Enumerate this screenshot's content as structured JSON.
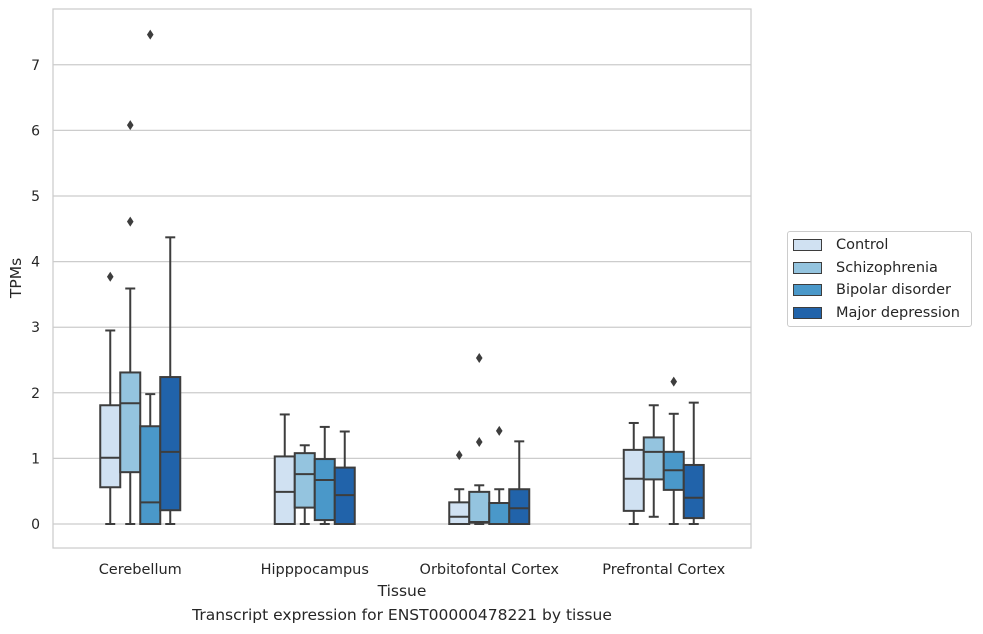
{
  "chart_data": {
    "type": "box",
    "title": "",
    "caption": "Transcript expression for ENST00000478221 by tissue",
    "xlabel": "Tissue",
    "ylabel": "TPMs",
    "ylim": [
      -0.37,
      7.85
    ],
    "yticks": [
      0,
      1,
      2,
      3,
      4,
      5,
      6,
      7
    ],
    "grid": "horizontal",
    "legend_position": "right",
    "categories": [
      "Cerebellum",
      "Hipppocampus",
      "Orbitofontal Cortex",
      "Prefrontal Cortex"
    ],
    "series": [
      {
        "name": "Control",
        "color": "#d0e1f2",
        "boxes": [
          {
            "whislo": 0,
            "q1": 0.56,
            "med": 1.01,
            "q3": 1.81,
            "whishi": 2.95,
            "fliers": [
              3.77
            ]
          },
          {
            "whislo": 0,
            "q1": 0,
            "med": 0.49,
            "q3": 1.03,
            "whishi": 1.67,
            "fliers": []
          },
          {
            "whislo": 0,
            "q1": 0,
            "med": 0.11,
            "q3": 0.33,
            "whishi": 0.53,
            "fliers": [
              1.05
            ]
          },
          {
            "whislo": 0,
            "q1": 0.2,
            "med": 0.69,
            "q3": 1.13,
            "whishi": 1.54,
            "fliers": []
          }
        ]
      },
      {
        "name": "Schizophrenia",
        "color": "#94c4df",
        "boxes": [
          {
            "whislo": 0,
            "q1": 0.79,
            "med": 1.84,
            "q3": 2.31,
            "whishi": 3.59,
            "fliers": [
              4.61,
              6.08
            ]
          },
          {
            "whislo": 0,
            "q1": 0.25,
            "med": 0.76,
            "q3": 1.08,
            "whishi": 1.2,
            "fliers": []
          },
          {
            "whislo": 0,
            "q1": 0.02,
            "med": 0.03,
            "q3": 0.49,
            "whishi": 0.59,
            "fliers": [
              1.25,
              2.53
            ]
          },
          {
            "whislo": 0.11,
            "q1": 0.68,
            "med": 1.1,
            "q3": 1.32,
            "whishi": 1.81,
            "fliers": []
          }
        ]
      },
      {
        "name": "Bipolar disorder",
        "color": "#4a98c9",
        "boxes": [
          {
            "whislo": 0,
            "q1": 0,
            "med": 0.33,
            "q3": 1.49,
            "whishi": 1.98,
            "fliers": [
              7.46
            ]
          },
          {
            "whislo": 0,
            "q1": 0.06,
            "med": 0.67,
            "q3": 0.99,
            "whishi": 1.48,
            "fliers": []
          },
          {
            "whislo": 0,
            "q1": 0,
            "med": 0,
            "q3": 0.32,
            "whishi": 0.53,
            "fliers": [
              1.42
            ]
          },
          {
            "whislo": 0,
            "q1": 0.52,
            "med": 0.82,
            "q3": 1.1,
            "whishi": 1.68,
            "fliers": [
              2.17
            ]
          }
        ]
      },
      {
        "name": "Major depression",
        "color": "#2163aa",
        "boxes": [
          {
            "whislo": 0,
            "q1": 0.21,
            "med": 1.1,
            "q3": 2.24,
            "whishi": 4.37,
            "fliers": []
          },
          {
            "whislo": 0,
            "q1": 0,
            "med": 0.44,
            "q3": 0.86,
            "whishi": 1.41,
            "fliers": []
          },
          {
            "whislo": 0,
            "q1": 0,
            "med": 0.24,
            "q3": 0.53,
            "whishi": 1.26,
            "fliers": []
          },
          {
            "whislo": 0,
            "q1": 0.09,
            "med": 0.4,
            "q3": 0.9,
            "whishi": 1.85,
            "fliers": []
          }
        ]
      }
    ]
  }
}
